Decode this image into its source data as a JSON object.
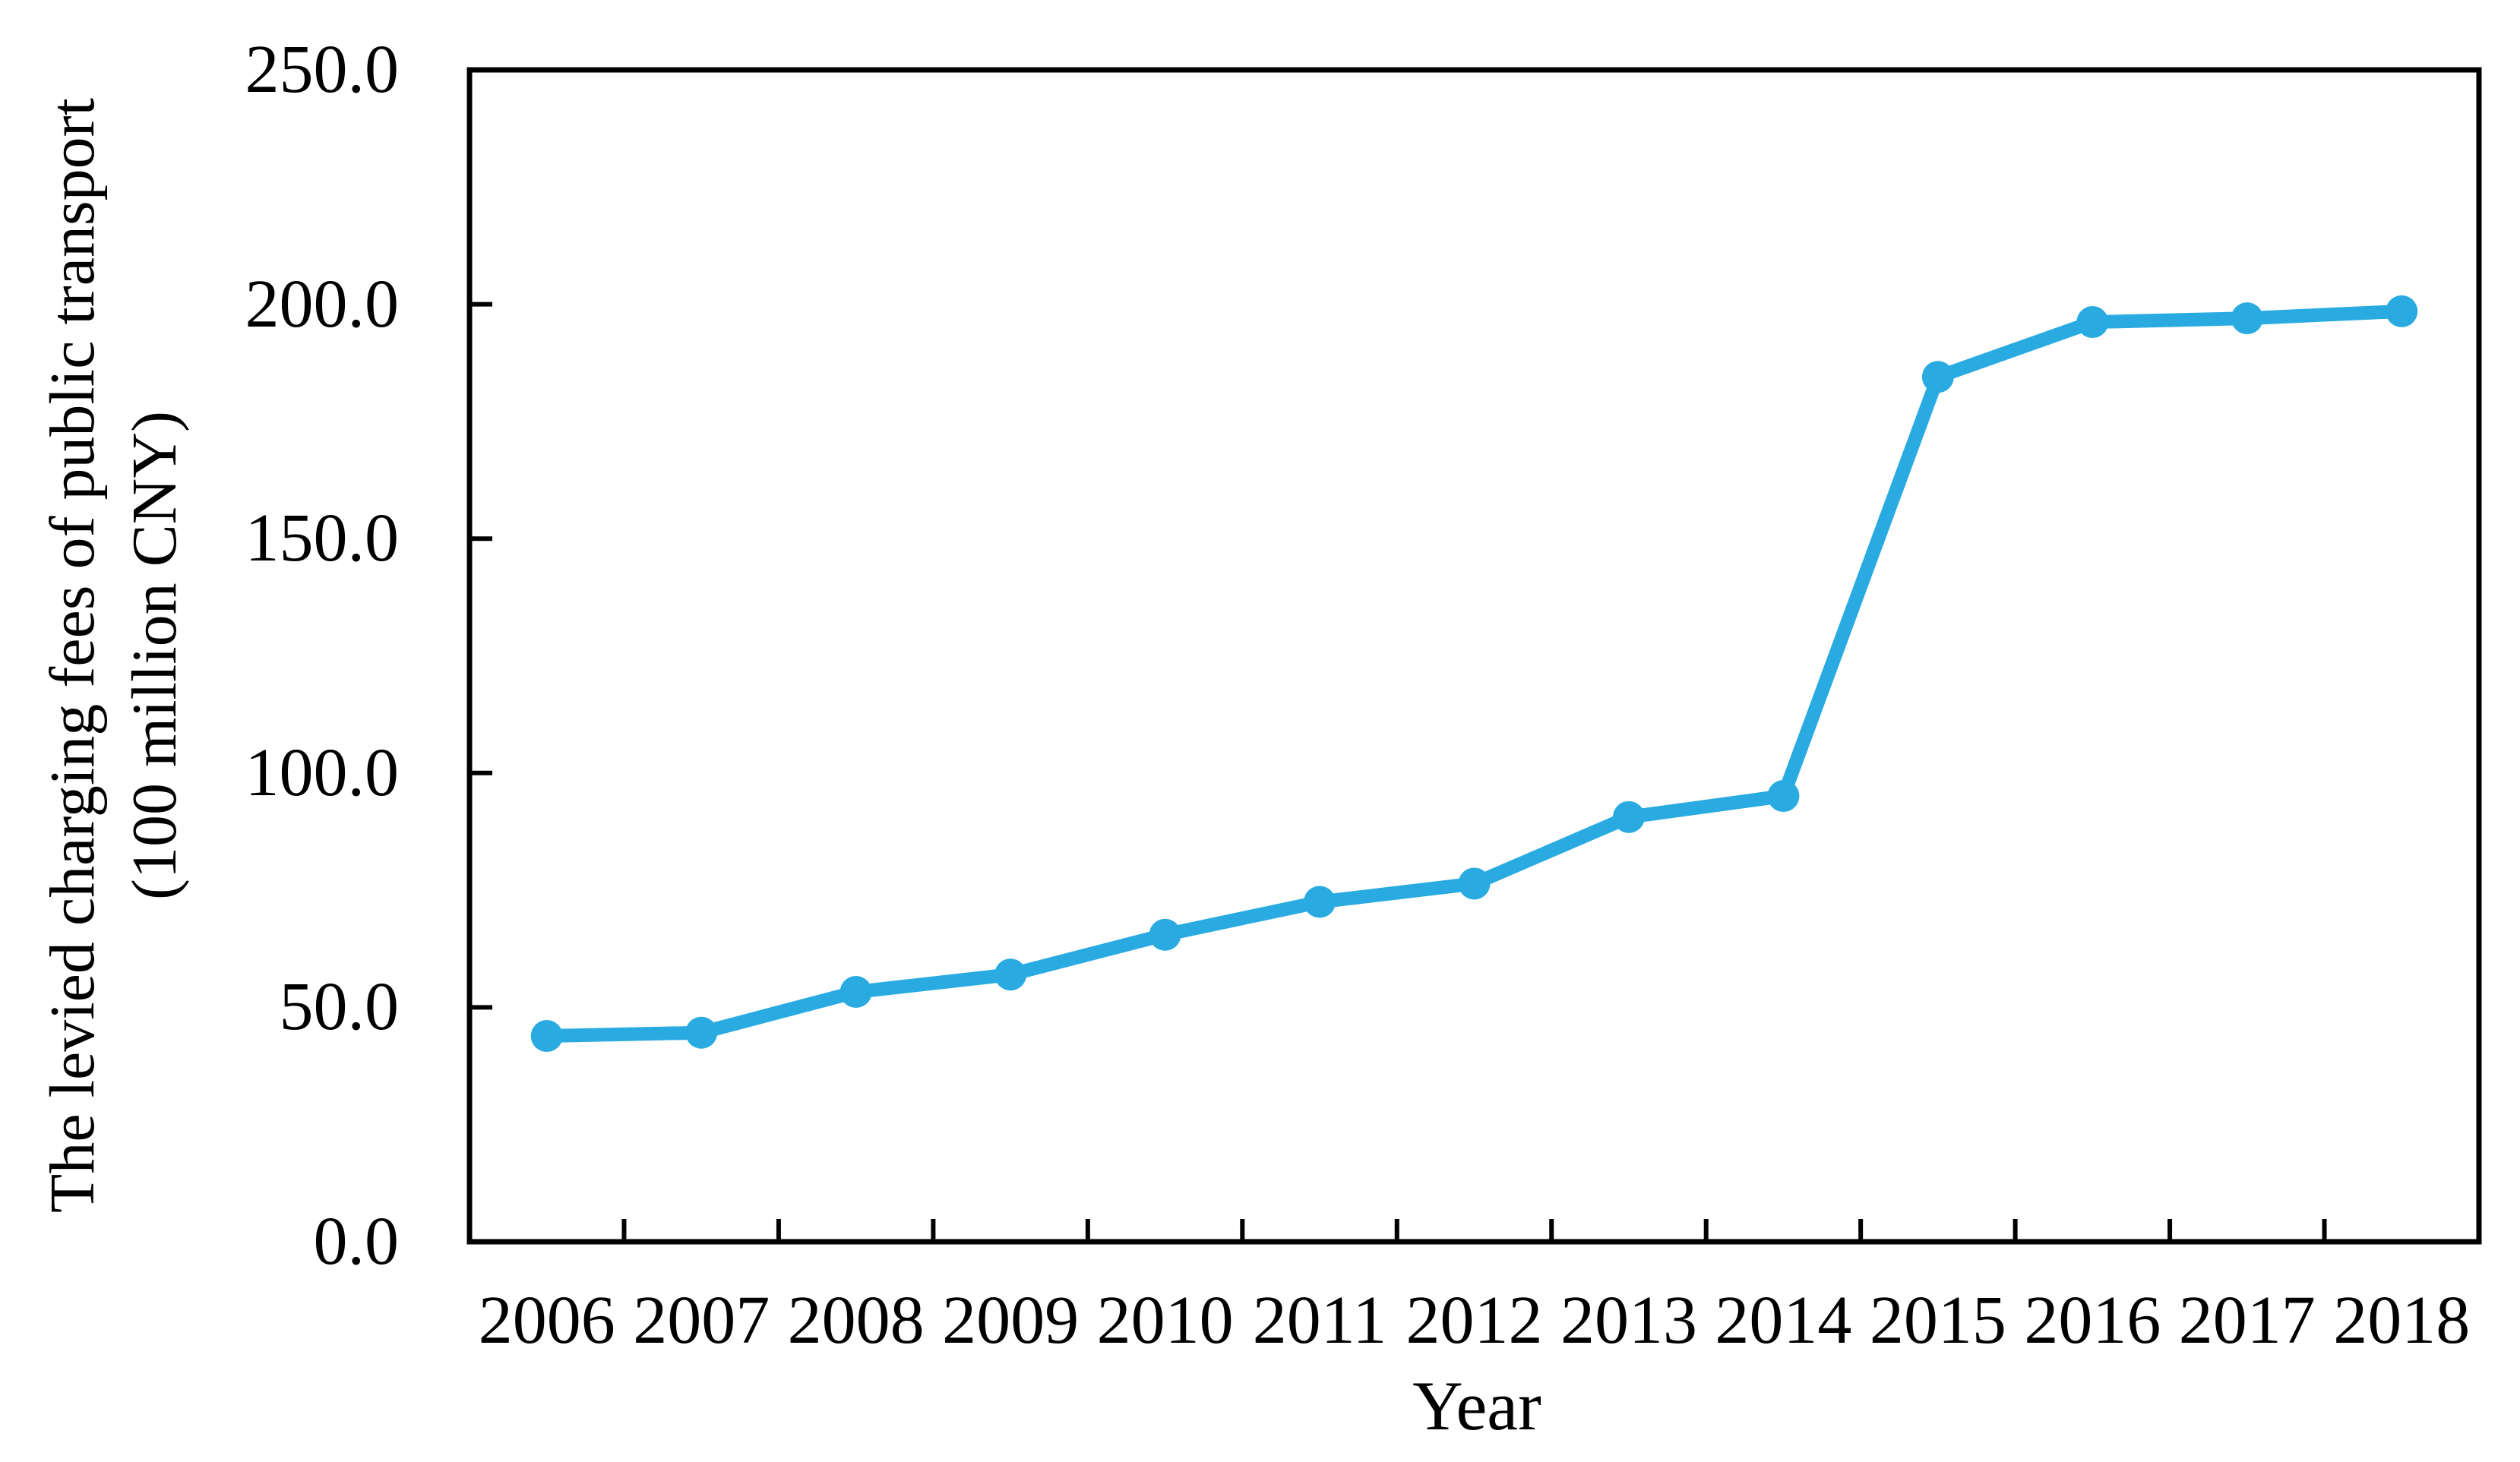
{
  "chart_data": {
    "type": "line",
    "title": "",
    "categories": [
      "2006",
      "2007",
      "2008",
      "2009",
      "2010",
      "2011",
      "2012",
      "2013",
      "2014",
      "2015",
      "2016",
      "2017",
      "2018"
    ],
    "values": [
      43.9,
      44.6,
      53.3,
      57.0,
      65.5,
      72.5,
      76.4,
      90.6,
      95.1,
      184.5,
      196.2,
      197.0,
      198.5
    ],
    "series_name": "The levied charging fees of public transport",
    "xlabel": "Year",
    "ylabel": "The levied charging fees of public transport (100 million CNY)",
    "ylabel_lines": [
      "The levied charging fees of public transport",
      "(100 million CNY)"
    ],
    "ylim": [
      0,
      250
    ],
    "ytick_labels": [
      "0.0",
      "50.0",
      "100.0",
      "150.0",
      "200.0",
      "250.0"
    ],
    "grid": false,
    "legend": "none",
    "marker": "circle",
    "line_color": "#29ABE2",
    "axis_color": "#000000",
    "background_color": "#FFFFFF"
  }
}
